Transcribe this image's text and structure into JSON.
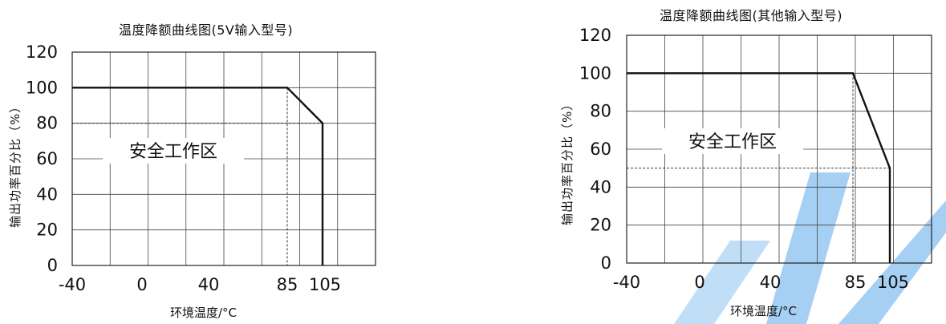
{
  "watermark": {
    "color": "#8ec3f0"
  },
  "chart_data": [
    {
      "type": "line",
      "title": "温度降额曲线图(5V输入型号)",
      "xlabel": "环境温度/°C",
      "ylabel": "输出功率百分比（%）",
      "x_ticks": [
        "-40",
        "0",
        "40",
        "85",
        "105"
      ],
      "y_ticks": [
        "0",
        "20",
        "40",
        "60",
        "80",
        "100",
        "120"
      ],
      "ylim": [
        0,
        120
      ],
      "grid": true,
      "annotation": "安全工作区",
      "series": [
        {
          "x": [
            -40,
            85,
            105,
            105
          ],
          "y": [
            100,
            100,
            80,
            0
          ]
        }
      ],
      "reference_lines": [
        {
          "axis": "y",
          "value": 80
        },
        {
          "axis": "x",
          "value": 85
        }
      ]
    },
    {
      "type": "line",
      "title": "温度降额曲线图(其他输入型号)",
      "xlabel": "环境温度/°C",
      "ylabel": "输出功率百分比（%）",
      "x_ticks": [
        "-40",
        "0",
        "40",
        "85",
        "105"
      ],
      "y_ticks": [
        "0",
        "20",
        "40",
        "60",
        "80",
        "100",
        "120"
      ],
      "ylim": [
        0,
        120
      ],
      "grid": true,
      "annotation": "安全工作区",
      "series": [
        {
          "x": [
            -40,
            85,
            105,
            105
          ],
          "y": [
            100,
            100,
            50,
            0
          ]
        }
      ],
      "reference_lines": [
        {
          "axis": "y",
          "value": 50
        },
        {
          "axis": "x",
          "value": 85
        }
      ]
    }
  ]
}
